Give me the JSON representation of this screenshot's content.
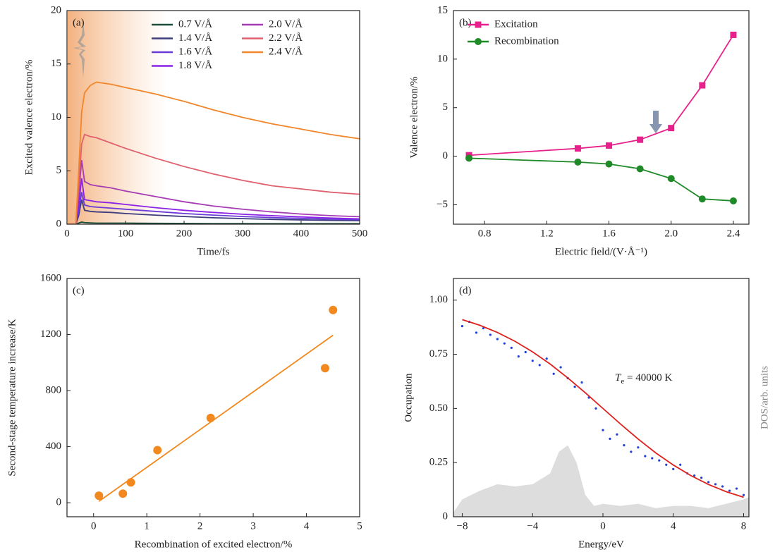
{
  "chart_data": [
    {
      "type": "line",
      "panel_label": "(a)",
      "x_label": "Time/fs",
      "y_label": "Excited valence electron/%",
      "xlim": [
        0,
        500
      ],
      "ylim": [
        0,
        20
      ],
      "xticks": [
        0,
        100,
        200,
        300,
        400,
        500
      ],
      "yticks": [
        0,
        5,
        10,
        15,
        20
      ],
      "legend": "upper right",
      "legend_ncol": 2,
      "x": [
        0,
        15,
        20,
        25,
        30,
        40,
        50,
        75,
        100,
        150,
        200,
        250,
        300,
        350,
        400,
        450,
        500
      ],
      "series": [
        {
          "name": "0.7 V/Å",
          "color": "#1f4e3d",
          "values": [
            0,
            0,
            0.1,
            0.2,
            0.15,
            0.12,
            0.1,
            0.1,
            0.1,
            0.08,
            0.07,
            0.06,
            0.06,
            0.05,
            0.05,
            0.05,
            0.05
          ]
        },
        {
          "name": "1.4 V/Å",
          "color": "#3d3d7e",
          "values": [
            0,
            0,
            0.8,
            2.3,
            1.3,
            1.2,
            1.15,
            1.1,
            1.0,
            0.85,
            0.72,
            0.6,
            0.52,
            0.45,
            0.4,
            0.36,
            0.33
          ]
        },
        {
          "name": "1.6 V/Å",
          "color": "#6a3bd6",
          "values": [
            0,
            0,
            1.2,
            3.0,
            1.8,
            1.65,
            1.6,
            1.5,
            1.4,
            1.2,
            1.0,
            0.85,
            0.72,
            0.62,
            0.54,
            0.47,
            0.42
          ]
        },
        {
          "name": "1.8 V/Å",
          "color": "#8b22e6",
          "values": [
            0,
            0,
            1.8,
            4.3,
            2.3,
            2.2,
            2.1,
            2.0,
            1.85,
            1.55,
            1.3,
            1.1,
            0.93,
            0.8,
            0.68,
            0.58,
            0.5
          ]
        },
        {
          "name": "2.0 V/Å",
          "color": "#a63cb4",
          "values": [
            0,
            0,
            2.8,
            6.0,
            4.0,
            3.7,
            3.6,
            3.4,
            3.1,
            2.6,
            2.1,
            1.7,
            1.4,
            1.15,
            0.95,
            0.8,
            0.7
          ]
        },
        {
          "name": "2.2 V/Å",
          "color": "#e0606e",
          "values": [
            0,
            0,
            3.5,
            7.5,
            8.4,
            8.2,
            8.1,
            7.6,
            7.1,
            6.2,
            5.4,
            4.7,
            4.1,
            3.6,
            3.3,
            3.0,
            2.8
          ]
        },
        {
          "name": "2.4 V/Å",
          "color": "#f2862a",
          "values": [
            0,
            0,
            5,
            10.5,
            12.3,
            13.0,
            13.3,
            13.1,
            12.8,
            12.2,
            11.5,
            10.7,
            10.0,
            9.4,
            8.9,
            8.4,
            8.0
          ]
        }
      ]
    },
    {
      "type": "line",
      "panel_label": "(b)",
      "x_label": "Electric field/(V·Å⁻¹)",
      "y_label": "Valence electron/%",
      "xlim": [
        0.6,
        2.5
      ],
      "ylim": [
        -7,
        15
      ],
      "xticks": [
        0.8,
        1.2,
        1.6,
        {
          "value": 2,
          "label": "2.0"
        },
        2.4
      ],
      "yticks": [
        {
          "value": -5,
          "label": "−5"
        },
        0,
        5,
        10,
        15
      ],
      "legend": "upper left",
      "legend_ncol": 1,
      "x": [
        0.7,
        1.4,
        1.6,
        1.8,
        2.0,
        2.2,
        2.4
      ],
      "series": [
        {
          "name": "Excitation",
          "color": "#e8208c",
          "marker": "square",
          "values": [
            0.1,
            0.8,
            1.1,
            1.7,
            2.9,
            7.3,
            12.5
          ]
        },
        {
          "name": "Recombination",
          "color": "#1e8a28",
          "marker": "circle",
          "values": [
            -0.2,
            -0.6,
            -0.8,
            -1.3,
            -2.3,
            -4.4,
            -4.6
          ]
        }
      ]
    },
    {
      "type": "scatter",
      "panel_label": "(c)",
      "x_label": "Recombination of excited electron/%",
      "y_label": "Second-stage temperature increase/K",
      "xlim": [
        -0.5,
        5
      ],
      "ylim": [
        -100,
        1600
      ],
      "xticks": [
        0,
        1,
        2,
        3,
        4,
        5
      ],
      "yticks": [
        0,
        400,
        800,
        1200,
        1600
      ],
      "series": [
        {
          "color": "#f2881e",
          "x": [
            0.1,
            4.5
          ],
          "values": [
            10,
            1195
          ]
        },
        {
          "color": "#f2881e",
          "marker": "circle",
          "line": false,
          "x": [
            0.1,
            0.55,
            0.7,
            1.2,
            2.2,
            4.35,
            4.5
          ],
          "values": [
            50,
            65,
            145,
            375,
            605,
            960,
            1375
          ]
        }
      ]
    },
    {
      "type": "scatter",
      "panel_label": "(d)",
      "x_label": "Energy/eV",
      "y_label": "Occupation",
      "y2_label": "DOS/arb. units",
      "annotation": {
        "symbol": "T",
        "subscript": "e",
        "text": " = 40000 K"
      },
      "xlim": [
        -8.5,
        8.3
      ],
      "ylim": [
        0,
        1.1
      ],
      "xticks": [
        {
          "value": -8,
          "label": "−8"
        },
        {
          "value": -4,
          "label": "−4"
        },
        0,
        4,
        8
      ],
      "yticks": [
        0,
        0.25,
        {
          "value": 0.5,
          "label": "0.50"
        },
        0.75,
        {
          "value": 1,
          "label": "1.00"
        }
      ],
      "series": [
        {
          "color": "#dddddd",
          "area": true,
          "line": false,
          "x": [
            -8.5,
            -8,
            -7,
            -6,
            -5,
            -4,
            -3,
            -2.5,
            -2,
            -1.5,
            -1,
            -0.5,
            0,
            1,
            2,
            3,
            4,
            5,
            6,
            7,
            8,
            8.3
          ],
          "values": [
            0.02,
            0.08,
            0.12,
            0.15,
            0.14,
            0.15,
            0.2,
            0.3,
            0.33,
            0.25,
            0.1,
            0.05,
            0.06,
            0.05,
            0.06,
            0.04,
            0.05,
            0.05,
            0.04,
            0.06,
            0.08,
            0.09
          ]
        },
        {
          "color": "#1f3fd6",
          "marker": "dot",
          "line": false,
          "x": [
            -8,
            -7.6,
            -7.2,
            -6.8,
            -6.4,
            -6,
            -5.6,
            -5.2,
            -4.8,
            -4.4,
            -4,
            -3.6,
            -3.2,
            -2.8,
            -2.4,
            -2,
            -1.6,
            -1.2,
            -0.8,
            -0.4,
            0,
            0.4,
            0.8,
            1.2,
            1.6,
            2,
            2.4,
            2.8,
            3.2,
            3.6,
            4,
            4.4,
            4.8,
            5.2,
            5.6,
            6,
            6.4,
            6.8,
            7.2,
            7.6,
            8
          ],
          "values": [
            0.88,
            0.9,
            0.85,
            0.87,
            0.84,
            0.82,
            0.8,
            0.78,
            0.74,
            0.76,
            0.72,
            0.7,
            0.73,
            0.66,
            0.69,
            0.64,
            0.6,
            0.62,
            0.55,
            0.5,
            0.4,
            0.36,
            0.38,
            0.33,
            0.3,
            0.32,
            0.28,
            0.27,
            0.26,
            0.24,
            0.22,
            0.24,
            0.2,
            0.19,
            0.18,
            0.16,
            0.15,
            0.14,
            0.12,
            0.13,
            0.1
          ]
        },
        {
          "color": "#e0201e",
          "x": [
            -8,
            -7,
            -6,
            -5,
            -4,
            -3,
            -2,
            -1,
            0,
            1,
            2,
            3,
            4,
            5,
            6,
            7,
            8
          ],
          "values": [
            0.91,
            0.884,
            0.851,
            0.81,
            0.761,
            0.705,
            0.641,
            0.572,
            0.5,
            0.428,
            0.359,
            0.295,
            0.239,
            0.19,
            0.149,
            0.116,
            0.09
          ]
        }
      ]
    }
  ]
}
